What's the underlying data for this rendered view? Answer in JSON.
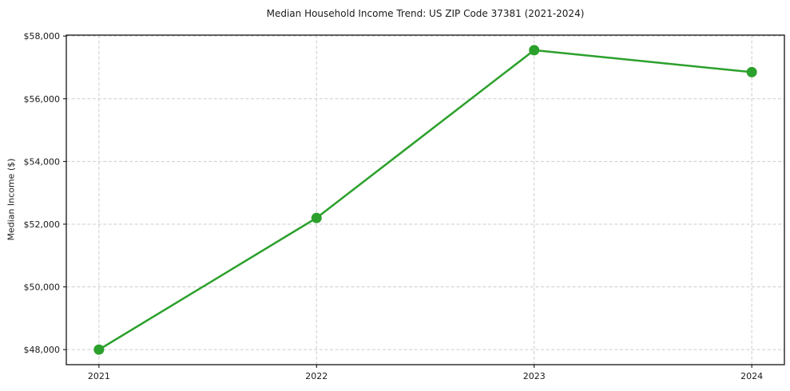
{
  "page": {
    "background": "#ffffff"
  },
  "chart_data": {
    "type": "line",
    "title": "Median Household Income Trend: US ZIP Code 37381 (2021-2024)",
    "xlabel": "",
    "ylabel": "Median Income ($)",
    "categories": [
      2021,
      2022,
      2023,
      2024
    ],
    "series": [
      {
        "name": "Median Household Income",
        "values": [
          48000,
          52200,
          57550,
          56850
        ]
      }
    ],
    "xtick_labels": [
      "2021",
      "2022",
      "2023",
      "2024"
    ],
    "yticks": [
      48000,
      50000,
      52000,
      54000,
      56000,
      58000
    ],
    "ytick_labels": [
      "$48,000",
      "$50,000",
      "$52,000",
      "$54,000",
      "$56,000",
      "$58,000"
    ],
    "ylim": [
      47520,
      58030
    ],
    "xlim": [
      2020.85,
      2024.15
    ],
    "grid": true,
    "grid_style": "dashed",
    "legend_position": "none",
    "colors": {
      "line": "#2ca02c",
      "marker": "#2ca02c",
      "grid": "#cccccc",
      "spine": "#000000",
      "text": "#1a1a1a"
    }
  }
}
